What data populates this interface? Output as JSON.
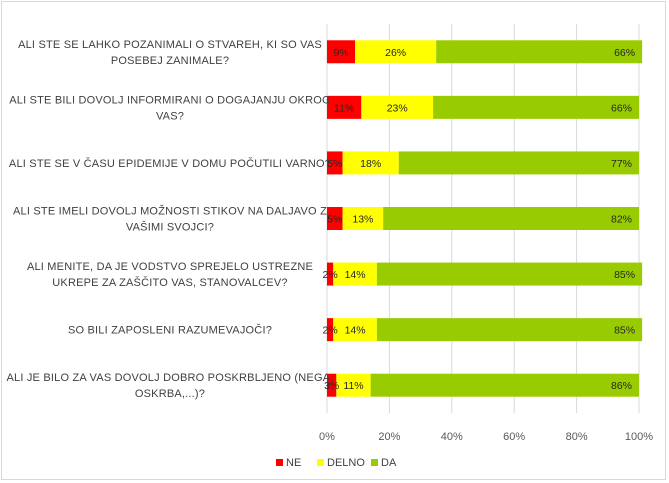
{
  "chart_data": {
    "type": "bar",
    "orientation": "horizontal",
    "stacked": "percent",
    "categories": [
      [
        "ALI STE SE LAHKO POZANIMALI O STVAREH, KI SO VAS",
        "POSEBEJ ZANIMALE?"
      ],
      [
        "ALI STE BILI DOVOLJ INFORMIRANI O DOGAJANJU OKROG",
        "VAS?"
      ],
      [
        "ALI STE SE V ČASU EPIDEMIJE V DOMU POČUTILI VARNO?"
      ],
      [
        "ALI STE IMELI DOVOLJ MOŽNOSTI STIKOV NA DALJAVO Z",
        "VAŠIMI SVOJCI?"
      ],
      [
        "ALI MENITE, DA JE VODSTVO SPREJELO USTREZNE",
        "UKREPE ZA ZAŠČITO VAS, STANOVALCEV?"
      ],
      [
        "SO BILI ZAPOSLENI RAZUMEVAJOČI?"
      ],
      [
        "ALI JE BILO ZA VAS DOVOLJ DOBRO POSKRBLJENO (NEGA,",
        "OSKRBA,...)?"
      ]
    ],
    "series": [
      {
        "name": "NE",
        "color": "#ff0000",
        "values": [
          9,
          11,
          5,
          5,
          2,
          2,
          3
        ],
        "labels": [
          "9%",
          "11%",
          "5%",
          "5%",
          "2%",
          "2%",
          "3%"
        ]
      },
      {
        "name": "DELNO",
        "color": "#ffff00",
        "values": [
          26,
          23,
          18,
          13,
          14,
          14,
          11
        ],
        "labels": [
          "26%",
          "23%",
          "18%",
          "13%",
          "14%",
          "14%",
          "11%"
        ]
      },
      {
        "name": "DA",
        "color": "#99cc00",
        "values": [
          66,
          66,
          77,
          82,
          85,
          85,
          86
        ],
        "labels": [
          "66%",
          "66%",
          "77%",
          "82%",
          "85%",
          "85%",
          "86%"
        ]
      }
    ],
    "xlim": [
      0,
      100
    ],
    "xticks": [
      "0%",
      "20%",
      "40%",
      "60%",
      "80%",
      "100%"
    ],
    "grid": true,
    "legend_position": "bottom"
  }
}
